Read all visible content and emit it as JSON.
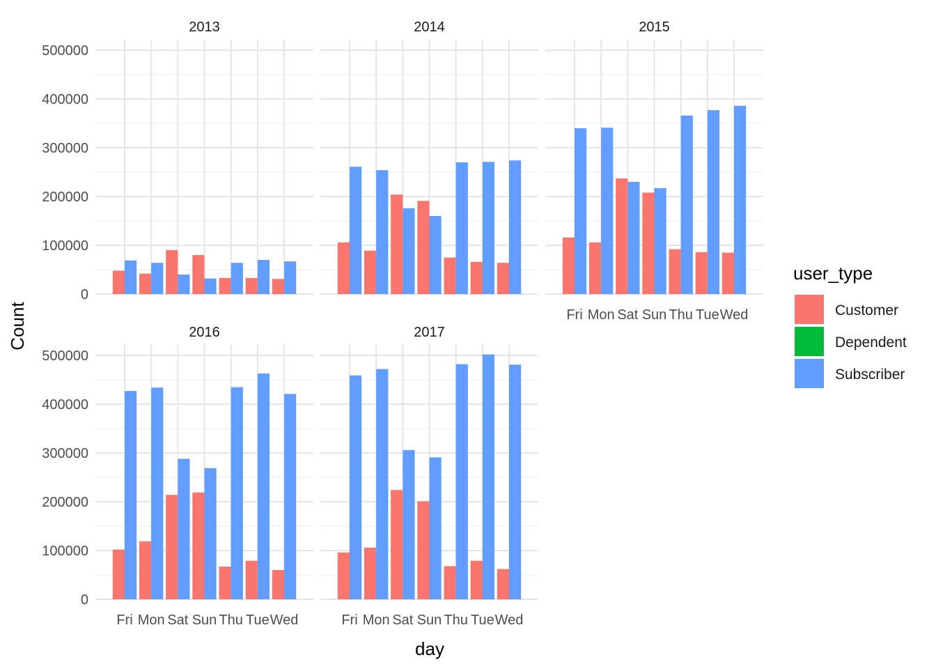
{
  "chart_data": {
    "type": "bar",
    "xlabel": "day",
    "ylabel": "Count",
    "ylim": [
      0,
      500000
    ],
    "yticks": [
      0,
      100000,
      200000,
      300000,
      400000,
      500000
    ],
    "ytick_labels": [
      "0",
      "100000",
      "200000",
      "300000",
      "400000",
      "500000"
    ],
    "categories": [
      "Fri",
      "Mon",
      "Sat",
      "Sun",
      "Thu",
      "Tue",
      "Wed"
    ],
    "legend": {
      "title": "user_type",
      "position": "right",
      "items": [
        {
          "name": "Customer",
          "color": "#F8766D"
        },
        {
          "name": "Dependent",
          "color": "#00BA38"
        },
        {
          "name": "Subscriber",
          "color": "#619CFF"
        }
      ]
    },
    "grid": true,
    "facets": [
      {
        "title": "2013",
        "series": [
          {
            "name": "Customer",
            "values": [
              48000,
              42000,
              90000,
              80000,
              33000,
              33000,
              31000
            ]
          },
          {
            "name": "Subscriber",
            "values": [
              69000,
              64000,
              40000,
              32000,
              64000,
              70000,
              67000
            ]
          }
        ]
      },
      {
        "title": "2014",
        "series": [
          {
            "name": "Customer",
            "values": [
              106000,
              89000,
              204000,
              191000,
              75000,
              66000,
              64000
            ]
          },
          {
            "name": "Subscriber",
            "values": [
              261000,
              254000,
              176000,
              160000,
              270000,
              271000,
              274000
            ]
          }
        ]
      },
      {
        "title": "2015",
        "series": [
          {
            "name": "Customer",
            "values": [
              116000,
              106000,
              237000,
              208000,
              92000,
              86000,
              85000
            ]
          },
          {
            "name": "Subscriber",
            "values": [
              340000,
              341000,
              230000,
              217000,
              366000,
              377000,
              386000
            ]
          }
        ]
      },
      {
        "title": "2016",
        "series": [
          {
            "name": "Customer",
            "values": [
              102000,
              119000,
              214000,
              219000,
              67000,
              79000,
              60000
            ]
          },
          {
            "name": "Subscriber",
            "values": [
              427000,
              434000,
              288000,
              269000,
              435000,
              463000,
              421000
            ]
          }
        ]
      },
      {
        "title": "2017",
        "series": [
          {
            "name": "Customer",
            "values": [
              96000,
              106000,
              224000,
              201000,
              68000,
              79000,
              62000
            ]
          },
          {
            "name": "Subscriber",
            "values": [
              459000,
              472000,
              306000,
              291000,
              482000,
              502000,
              481000
            ]
          }
        ]
      }
    ]
  }
}
